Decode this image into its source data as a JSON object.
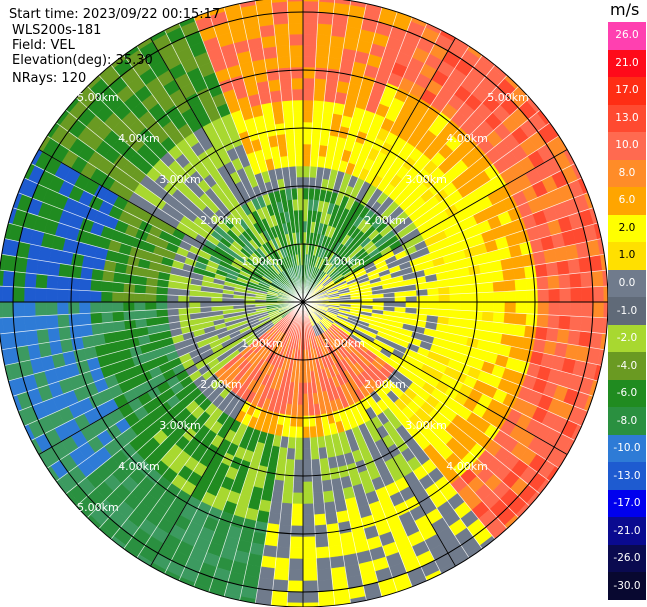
{
  "header": {
    "start_time": "Start time: 2023/09/22 00:15:17",
    "instrument": "WLS200s-181",
    "field": "Field: VEL",
    "elevation": "Elevation(deg): 35.30",
    "nrays": "NRays: 120"
  },
  "range_rings": {
    "labels_upper_left": [
      "1.00km",
      "2.00km",
      "3.00km",
      "4.00km",
      "5.00km"
    ],
    "labels_upper_right": [
      "1.00km",
      "2.00km",
      "3.00km",
      "4.00km",
      "5.00km"
    ],
    "labels_lower_left": [
      "1.00km",
      "2.00km",
      "3.00km",
      "4.00km",
      "5.00km"
    ],
    "labels_lower_right": [
      "1.00km",
      "2.00km",
      "3.00km",
      "4.00km"
    ]
  },
  "colorbar": {
    "unit": "m/s",
    "ticks": [
      "26.0",
      "21.0",
      "17.0",
      "13.0",
      "10.0",
      "8.0",
      "6.0",
      "2.0",
      "1.0",
      "0.0",
      "-1.0",
      "-2.0",
      "-4.0",
      "-6.0",
      "-8.0",
      "-10.0",
      "-13.0",
      "-17.0",
      "-21.0",
      "-26.0",
      "-30.0"
    ],
    "colors": [
      "#ff40b0",
      "#ff0a1a",
      "#ff2d14",
      "#ff4a30",
      "#ff6a50",
      "#ff8c28",
      "#ffa500",
      "#ffff00",
      "#ffe000",
      "#707b8c",
      "#606a78",
      "#a8d830",
      "#6a9a22",
      "#208b20",
      "#2a9040",
      "#2e7bd6",
      "#1e5bd0",
      "#0000ee",
      "#0a0a90",
      "#0a0a50",
      "#080830"
    ]
  }
}
